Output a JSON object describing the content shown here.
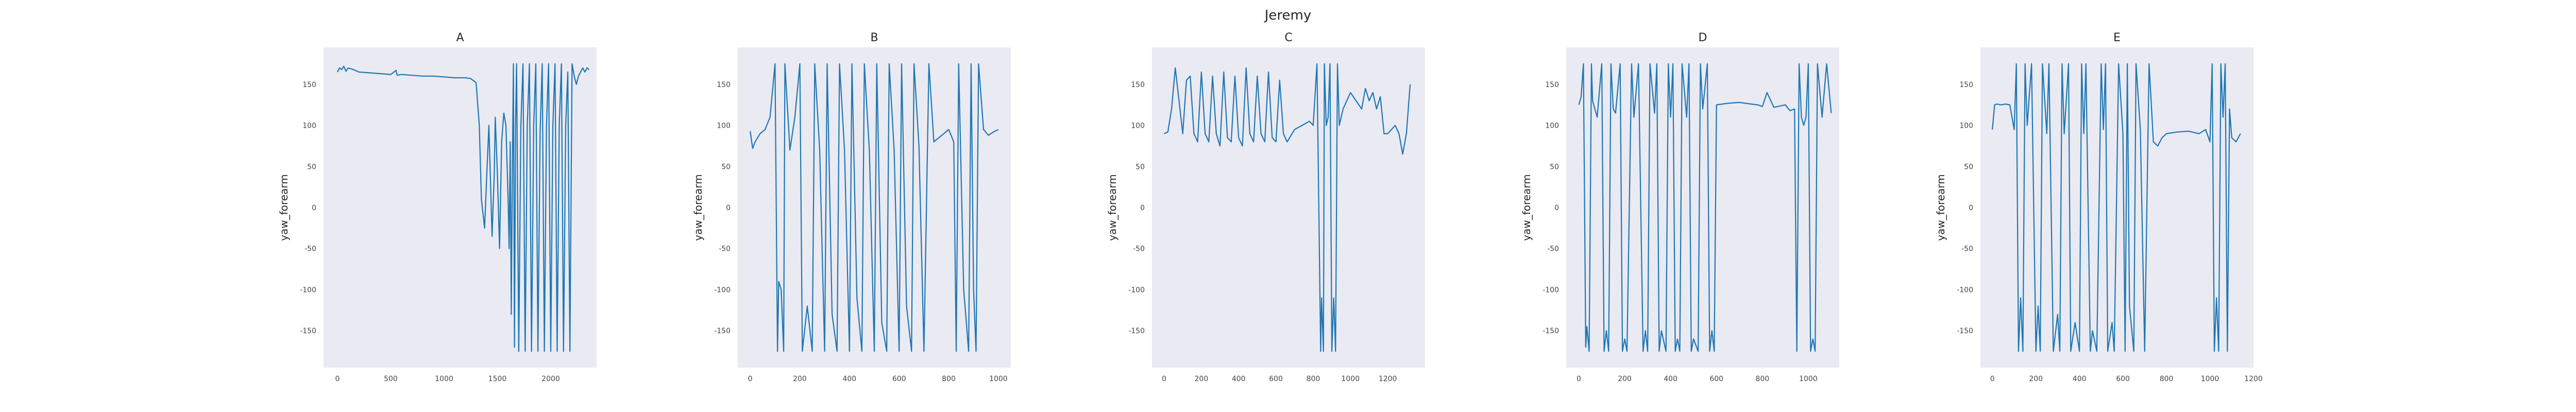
{
  "figure": {
    "title": "Jeremy"
  },
  "style": {
    "axes_bg": "#EAEAF2",
    "line_color": "#1F77B4"
  },
  "chart_data": [
    {
      "type": "line",
      "title": "A",
      "xlabel": "",
      "ylabel": "yaw_forearm",
      "xlim": [
        -130,
        2430
      ],
      "ylim": [
        -195,
        195
      ],
      "xticks": [
        0,
        500,
        1000,
        1500,
        2000
      ],
      "yticks": [
        -150,
        -100,
        -50,
        0,
        50,
        100,
        150
      ],
      "grid": false,
      "series": [
        {
          "x": [
            0,
            20,
            40,
            60,
            80,
            100,
            150,
            200,
            300,
            400,
            500,
            550,
            560,
            600,
            700,
            800,
            900,
            1000,
            1100,
            1200,
            1250,
            1300,
            1330,
            1350,
            1380,
            1400,
            1420,
            1450,
            1470,
            1480,
            1500,
            1520,
            1540,
            1560,
            1580,
            1600,
            1610,
            1620,
            1630,
            1640,
            1650,
            1660,
            1670,
            1680,
            1700,
            1720,
            1740,
            1760,
            1780,
            1800,
            1820,
            1840,
            1860,
            1880,
            1900,
            1920,
            1940,
            1960,
            1980,
            2000,
            2020,
            2040,
            2060,
            2080,
            2100,
            2120,
            2140,
            2160,
            2180,
            2200,
            2220,
            2240,
            2260,
            2280,
            2300,
            2320,
            2340,
            2360
          ],
          "y": [
            165,
            170,
            168,
            172,
            166,
            170,
            168,
            165,
            164,
            163,
            162,
            167,
            161,
            162,
            161,
            160,
            160,
            159,
            158,
            158,
            157,
            152,
            100,
            10,
            -25,
            40,
            100,
            -35,
            40,
            110,
            40,
            -50,
            80,
            115,
            100,
            10,
            -50,
            80,
            -130,
            40,
            175,
            -170,
            100,
            175,
            -175,
            100,
            175,
            -175,
            100,
            175,
            -175,
            100,
            175,
            -175,
            90,
            175,
            -175,
            100,
            175,
            -175,
            100,
            175,
            -175,
            100,
            175,
            -175,
            100,
            165,
            -175,
            175,
            160,
            150,
            160,
            165,
            170,
            165,
            170,
            168
          ]
        }
      ]
    },
    {
      "type": "line",
      "title": "B",
      "xlabel": "",
      "ylabel": "yaw_forearm",
      "xlim": [
        -50,
        1050
      ],
      "ylim": [
        -195,
        195
      ],
      "xticks": [
        0,
        200,
        400,
        600,
        800,
        1000
      ],
      "yticks": [
        -150,
        -100,
        -50,
        0,
        50,
        100,
        150
      ],
      "grid": false,
      "series": [
        {
          "x": [
            0,
            10,
            20,
            40,
            60,
            80,
            100,
            110,
            115,
            125,
            135,
            140,
            160,
            180,
            200,
            210,
            230,
            250,
            260,
            280,
            300,
            310,
            330,
            350,
            360,
            380,
            400,
            410,
            430,
            450,
            460,
            480,
            500,
            510,
            530,
            550,
            560,
            580,
            600,
            610,
            630,
            650,
            660,
            680,
            700,
            720,
            740,
            760,
            780,
            800,
            820,
            830,
            840,
            860,
            880,
            890,
            900,
            910,
            920,
            940,
            960,
            980,
            1000
          ],
          "y": [
            93,
            72,
            80,
            90,
            95,
            110,
            175,
            -175,
            -90,
            -100,
            -175,
            175,
            70,
            110,
            175,
            -175,
            -120,
            -175,
            175,
            70,
            -175,
            175,
            -130,
            -175,
            175,
            70,
            -175,
            175,
            -110,
            -175,
            175,
            70,
            -175,
            175,
            -140,
            -175,
            175,
            70,
            -175,
            175,
            -120,
            -175,
            175,
            75,
            -175,
            175,
            80,
            85,
            90,
            95,
            80,
            -175,
            175,
            -100,
            -175,
            175,
            -100,
            -175,
            175,
            95,
            88,
            92,
            95
          ]
        }
      ]
    },
    {
      "type": "line",
      "title": "C",
      "xlabel": "",
      "ylabel": "yaw_forearm",
      "xlim": [
        -65,
        1400
      ],
      "ylim": [
        -195,
        195
      ],
      "xticks": [
        0,
        200,
        400,
        600,
        800,
        1000,
        1200
      ],
      "yticks": [
        -150,
        -100,
        -50,
        0,
        50,
        100,
        150
      ],
      "grid": false,
      "series": [
        {
          "x": [
            0,
            20,
            40,
            60,
            80,
            100,
            120,
            140,
            160,
            180,
            200,
            220,
            240,
            260,
            280,
            300,
            320,
            340,
            360,
            380,
            400,
            420,
            440,
            460,
            480,
            500,
            520,
            540,
            560,
            580,
            600,
            620,
            640,
            660,
            700,
            740,
            780,
            800,
            820,
            840,
            845,
            855,
            860,
            870,
            880,
            890,
            900,
            910,
            920,
            930,
            940,
            950,
            960,
            1000,
            1060,
            1080,
            1100,
            1120,
            1140,
            1160,
            1180,
            1200,
            1220,
            1240,
            1260,
            1280,
            1300,
            1320
          ],
          "y": [
            90,
            92,
            120,
            170,
            130,
            90,
            155,
            160,
            90,
            80,
            165,
            90,
            80,
            160,
            90,
            75,
            165,
            85,
            80,
            160,
            85,
            75,
            170,
            90,
            80,
            160,
            90,
            80,
            165,
            85,
            80,
            155,
            90,
            80,
            95,
            100,
            105,
            100,
            175,
            -175,
            -110,
            -175,
            175,
            100,
            110,
            175,
            -175,
            -110,
            -175,
            175,
            100,
            110,
            120,
            140,
            120,
            145,
            130,
            140,
            120,
            135,
            90,
            90,
            95,
            100,
            90,
            65,
            90,
            150
          ]
        }
      ]
    },
    {
      "type": "line",
      "title": "D",
      "xlabel": "",
      "ylabel": "yaw_forearm",
      "xlim": [
        -55,
        1135
      ],
      "ylim": [
        -195,
        195
      ],
      "xticks": [
        0,
        200,
        400,
        600,
        800,
        1000
      ],
      "yticks": [
        -150,
        -100,
        -50,
        0,
        50,
        100,
        150
      ],
      "grid": false,
      "series": [
        {
          "x": [
            0,
            10,
            20,
            30,
            35,
            45,
            55,
            60,
            80,
            100,
            110,
            120,
            130,
            140,
            150,
            160,
            180,
            190,
            200,
            210,
            230,
            240,
            260,
            280,
            290,
            300,
            310,
            330,
            340,
            350,
            360,
            380,
            390,
            400,
            410,
            420,
            430,
            440,
            450,
            470,
            480,
            490,
            500,
            520,
            530,
            540,
            560,
            570,
            580,
            590,
            600,
            650,
            700,
            750,
            780,
            800,
            820,
            850,
            900,
            920,
            940,
            950,
            960,
            970,
            980,
            990,
            1000,
            1010,
            1020,
            1030,
            1040,
            1060,
            1080,
            1100
          ],
          "y": [
            125,
            135,
            175,
            -170,
            -145,
            -175,
            175,
            130,
            110,
            175,
            -175,
            -150,
            -175,
            175,
            120,
            115,
            175,
            -175,
            -160,
            -175,
            175,
            110,
            175,
            -175,
            -150,
            -175,
            175,
            115,
            175,
            -175,
            -150,
            -175,
            175,
            110,
            175,
            -175,
            -160,
            -175,
            175,
            110,
            175,
            -175,
            -160,
            -175,
            175,
            120,
            175,
            -175,
            -150,
            -175,
            125,
            127,
            128,
            126,
            125,
            123,
            140,
            122,
            125,
            118,
            120,
            -175,
            175,
            110,
            100,
            110,
            175,
            -175,
            -160,
            -175,
            175,
            110,
            175,
            115
          ]
        }
      ]
    },
    {
      "type": "line",
      "title": "E",
      "xlabel": "",
      "ylabel": "yaw_forearm",
      "xlim": [
        -55,
        1200
      ],
      "ylim": [
        -195,
        195
      ],
      "xticks": [
        0,
        200,
        400,
        600,
        800,
        1000,
        1200
      ],
      "yticks": [
        -150,
        -100,
        -50,
        0,
        50,
        100,
        150
      ],
      "grid": false,
      "series": [
        {
          "x": [
            0,
            10,
            20,
            40,
            60,
            80,
            100,
            110,
            120,
            130,
            140,
            150,
            160,
            180,
            200,
            210,
            220,
            230,
            250,
            260,
            280,
            300,
            310,
            320,
            330,
            350,
            360,
            380,
            400,
            410,
            420,
            430,
            450,
            460,
            480,
            500,
            510,
            520,
            530,
            550,
            560,
            580,
            600,
            610,
            620,
            630,
            650,
            660,
            680,
            700,
            720,
            740,
            760,
            780,
            800,
            850,
            900,
            950,
            980,
            1000,
            1010,
            1020,
            1030,
            1040,
            1050,
            1060,
            1070,
            1080,
            1090,
            1100,
            1120,
            1140
          ],
          "y": [
            95,
            125,
            126,
            125,
            126,
            125,
            95,
            175,
            -175,
            -110,
            -175,
            175,
            100,
            175,
            -175,
            -120,
            -175,
            175,
            90,
            175,
            -175,
            -130,
            -175,
            175,
            90,
            175,
            -175,
            -140,
            -175,
            175,
            90,
            175,
            -175,
            -150,
            -175,
            175,
            95,
            175,
            -175,
            -140,
            -175,
            175,
            90,
            -175,
            175,
            -120,
            -175,
            175,
            95,
            -175,
            175,
            80,
            75,
            85,
            90,
            92,
            93,
            90,
            95,
            80,
            175,
            -175,
            -110,
            -175,
            175,
            110,
            175,
            -175,
            120,
            85,
            80,
            90
          ]
        }
      ]
    }
  ]
}
